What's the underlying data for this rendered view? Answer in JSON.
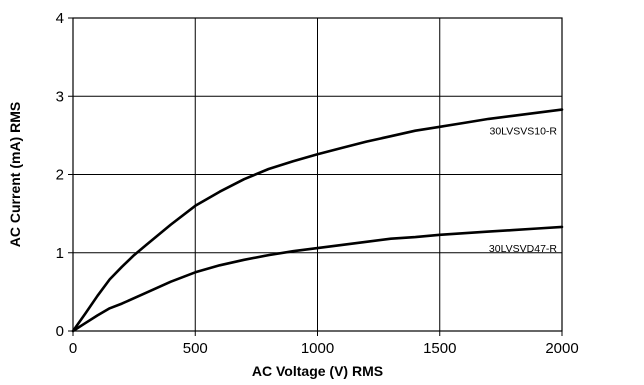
{
  "chart_data": {
    "type": "line",
    "xlabel": "AC Voltage (V) RMS",
    "ylabel": "AC Current (mA) RMS",
    "xlim": [
      0,
      2000
    ],
    "ylim": [
      0,
      4
    ],
    "x_ticks": [
      "0",
      "500",
      "1000",
      "1500",
      "2000"
    ],
    "y_ticks": [
      "0",
      "1",
      "2",
      "3",
      "4"
    ],
    "grid": true,
    "line_color": "#000000",
    "series": [
      {
        "name": "30LVSVS10-R",
        "x": [
          0,
          50,
          100,
          150,
          200,
          250,
          300,
          400,
          500,
          600,
          700,
          800,
          900,
          1000,
          1100,
          1200,
          1300,
          1400,
          1500,
          1600,
          1700,
          1800,
          1900,
          2000
        ],
        "y": [
          0,
          0.22,
          0.45,
          0.66,
          0.82,
          0.97,
          1.1,
          1.36,
          1.6,
          1.78,
          1.94,
          2.07,
          2.17,
          2.26,
          2.34,
          2.42,
          2.49,
          2.56,
          2.61,
          2.66,
          2.71,
          2.75,
          2.79,
          2.83
        ]
      },
      {
        "name": "30LVSVD47-R",
        "x": [
          0,
          50,
          100,
          150,
          200,
          300,
          400,
          500,
          600,
          700,
          800,
          900,
          1000,
          1100,
          1200,
          1300,
          1400,
          1500,
          1600,
          1700,
          1800,
          1900,
          2000
        ],
        "y": [
          0,
          0.1,
          0.2,
          0.29,
          0.35,
          0.49,
          0.63,
          0.75,
          0.84,
          0.91,
          0.97,
          1.02,
          1.06,
          1.1,
          1.14,
          1.18,
          1.2,
          1.23,
          1.25,
          1.27,
          1.29,
          1.31,
          1.33
        ]
      }
    ]
  }
}
